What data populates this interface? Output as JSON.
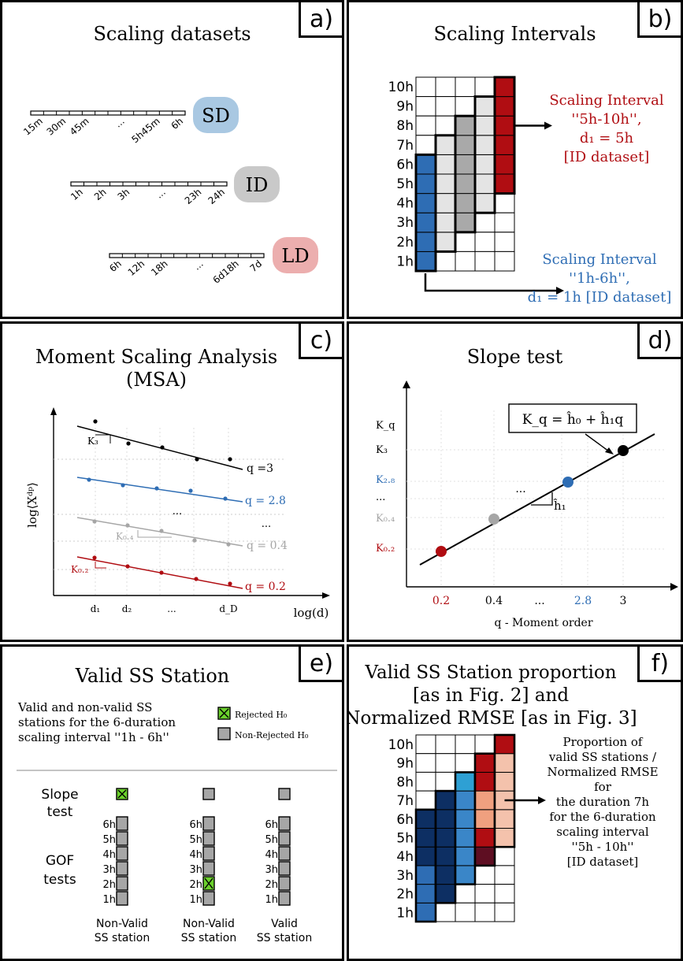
{
  "panels": {
    "a": {
      "label": "a)",
      "title": "Scaling datasets",
      "sd": {
        "badge": "SD",
        "ticks": [
          "15m",
          "30m",
          "45m",
          "...",
          "5h45m",
          "6h"
        ]
      },
      "id": {
        "badge": "ID",
        "ticks": [
          "1h",
          "2h",
          "3h",
          "...",
          "23h",
          "24h"
        ]
      },
      "ld": {
        "badge": "LD",
        "ticks": [
          "6h",
          "12h",
          "18h",
          "...",
          "6d18h",
          "7d"
        ]
      }
    },
    "b": {
      "label": "b)",
      "title": "Scaling Intervals",
      "rows": [
        "10h",
        "9h",
        "8h",
        "7h",
        "6h",
        "5h",
        "4h",
        "3h",
        "2h",
        "1h"
      ],
      "note_red": [
        "Scaling Interval",
        "''5h-10h'',",
        "d₁ = 5h",
        "[ID dataset]"
      ],
      "note_blue": [
        "Scaling Interval",
        "''1h-6h'',",
        "d₁ = 1h [ID dataset]"
      ],
      "colors": {
        "blue": "#2e6db4",
        "red": "#b00d12",
        "light": "#e4e4e4",
        "mid": "#a9a9a9"
      }
    },
    "c": {
      "label": "c)",
      "title": "Moment Scaling Analysis",
      "subtitle": "(MSA)",
      "ylabel": "log⟨X",
      "xlabel": "log(d)",
      "xticks": [
        "d₁",
        "d₂",
        "...",
        "d_D"
      ],
      "series": [
        {
          "name": "q =3",
          "color": "#000000"
        },
        {
          "name": "q = 2.8",
          "color": "#2e6db4"
        },
        {
          "name": "q = 0.4",
          "color": "#a6a6a6"
        },
        {
          "name": "q = 0.2",
          "color": "#b00d12"
        }
      ],
      "k_labels": [
        "K₃",
        "K₀.₄",
        "K₀.₂"
      ],
      "dots": "..."
    },
    "d": {
      "label": "d)",
      "title": "Slope test",
      "formula": "K_q = ĥ₀ + ĥ₁q",
      "ylabels": [
        "K_q",
        "K₃",
        "K₂.₈",
        "...",
        "K₀.₄",
        "K₀.₂"
      ],
      "xticks": [
        "0.2",
        "0.4",
        "...",
        "2.8",
        "3"
      ],
      "xlabel": "q - Moment order",
      "slope": "ĥ₁",
      "dots": "..."
    },
    "e": {
      "label": "e)",
      "title": "Valid SS Station",
      "desc": [
        "Valid and non-valid SS",
        "stations for the 6-duration",
        "scaling interval ''1h - 6h''"
      ],
      "legend_rejected": "Rejected H₀",
      "legend_nonrejected": "Non-Rejected H₀",
      "slope_label": [
        "Slope",
        "test"
      ],
      "gof_label": [
        "GOF",
        "tests"
      ],
      "rows": [
        "6h",
        "5h",
        "4h",
        "3h",
        "2h",
        "1h"
      ],
      "stations": [
        {
          "name": [
            "Non-Valid",
            "SS station"
          ]
        },
        {
          "name": [
            "Non-Valid",
            "SS station"
          ]
        },
        {
          "name": [
            "Valid",
            "SS station"
          ]
        }
      ]
    },
    "f": {
      "label": "f)",
      "title": [
        "Valid SS Station proportion",
        "[as in Fig. 2] and",
        "Normalized RMSE [as in Fig. 3]"
      ],
      "rows": [
        "10h",
        "9h",
        "8h",
        "7h",
        "6h",
        "5h",
        "4h",
        "3h",
        "2h",
        "1h"
      ],
      "note": [
        "Proportion of",
        "valid SS stations /",
        "Normalized RMSE",
        "for",
        "the duration 7h",
        "for the 6-duration",
        "scaling interval",
        "''5h - 10h''",
        "[ID dataset]"
      ]
    }
  }
}
